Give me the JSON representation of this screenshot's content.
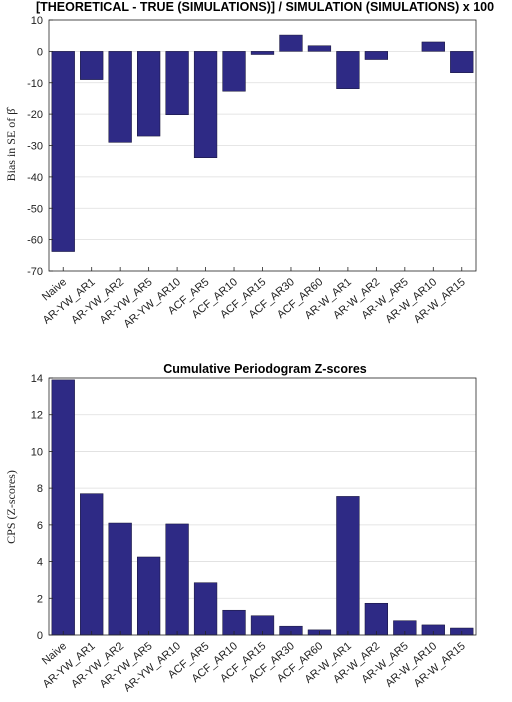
{
  "chart_data": [
    {
      "type": "bar",
      "title": "[THEORETICAL - TRUE (SIMULATIONS)] / SIMULATION (SIMULATIONS) x 100",
      "ylabel": "Bias in SE of β̂",
      "xlabel": "",
      "ylim": [
        -70,
        10
      ],
      "yticks": [
        10,
        0,
        -10,
        -20,
        -30,
        -40,
        -50,
        -60,
        -70
      ],
      "grid": true,
      "bar_color": "#2e2a85",
      "categories": [
        "Naive",
        "AR-YW_AR1",
        "AR-YW_AR2",
        "AR-YW_AR5",
        "AR-YW_AR10",
        "ACF_AR5",
        "ACF_AR10",
        "ACF_AR15",
        "ACF_AR30",
        "ACF_AR60",
        "AR-W_AR1",
        "AR-W_AR2",
        "AR-W_AR5",
        "AR-W_AR10",
        "AR-W_AR15"
      ],
      "values": [
        -63.8,
        -9.0,
        -29.0,
        -27.0,
        -20.2,
        -33.9,
        -12.7,
        -1.0,
        5.2,
        1.8,
        -11.9,
        -2.6,
        0.0,
        3.0,
        -6.8
      ]
    },
    {
      "type": "bar",
      "title": "Cumulative Periodogram Z-scores",
      "ylabel": "CPS (Z-scores)",
      "xlabel": "",
      "ylim": [
        0,
        14
      ],
      "yticks": [
        14,
        12,
        10,
        8,
        6,
        4,
        2,
        0
      ],
      "grid": true,
      "bar_color": "#2e2a85",
      "categories": [
        "Naive",
        "AR-YW_AR1",
        "AR-YW_AR2",
        "AR-YW_AR5",
        "AR-YW_AR10",
        "ACF_AR5",
        "ACF_AR10",
        "ACF_AR15",
        "ACF_AR30",
        "ACF_AR60",
        "AR-W_AR1",
        "AR-W_AR2",
        "AR-W_AR5",
        "AR-W_AR10",
        "AR-W_AR15"
      ],
      "values": [
        13.9,
        7.7,
        6.1,
        4.25,
        6.05,
        2.85,
        1.35,
        1.05,
        0.48,
        0.28,
        7.55,
        1.73,
        0.78,
        0.55,
        0.38
      ]
    }
  ]
}
